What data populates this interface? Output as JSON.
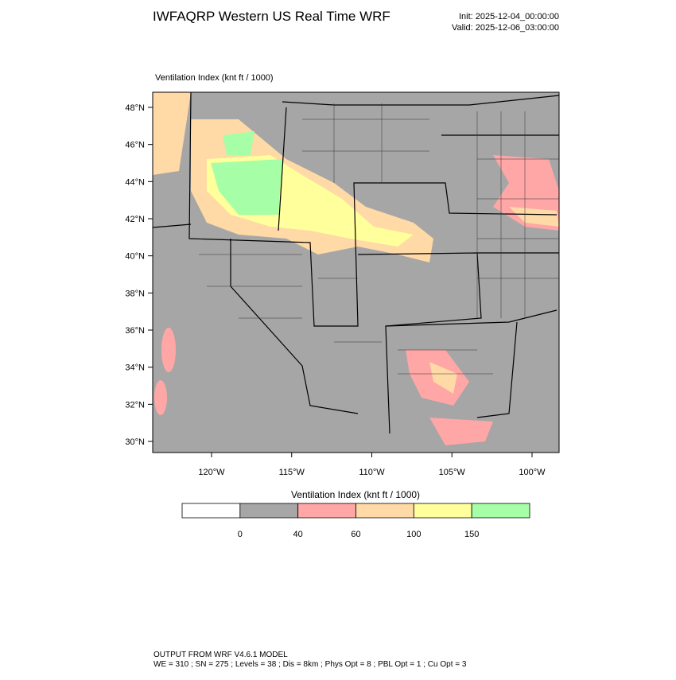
{
  "header": {
    "title": "IWFAQRP Western US Real Time WRF",
    "init": "Init: 2025-12-04_00:00:00",
    "valid": "Valid: 2025-12-06_03:00:00"
  },
  "map": {
    "label": "Ventilation Index   (knt ft / 1000)",
    "lat_labels": [
      "48°N",
      "46°N",
      "44°N",
      "42°N",
      "40°N",
      "38°N",
      "36°N",
      "34°N",
      "32°N",
      "30°N"
    ],
    "lon_labels": [
      "120°W",
      "115°W",
      "110°W",
      "105°W",
      "100°W"
    ]
  },
  "colorbar": {
    "title": "Ventilation Index  (knt ft / 1000)",
    "colors": [
      "#ffffff",
      "#a6a6a6",
      "#ffa6a6",
      "#ffd9a6",
      "#ffff9c",
      "#a6ffa6"
    ],
    "levels": [
      "0",
      "40",
      "60",
      "100",
      "150"
    ]
  },
  "footer": {
    "lines": [
      "OUTPUT FROM WRF V4.6.1 MODEL",
      "WE = 310 ; SN = 275 ; Levels = 38 ; Dis = 8km ; Phys Opt = 8 ; PBL Opt = 1 ; Cu Opt = 3"
    ]
  }
}
